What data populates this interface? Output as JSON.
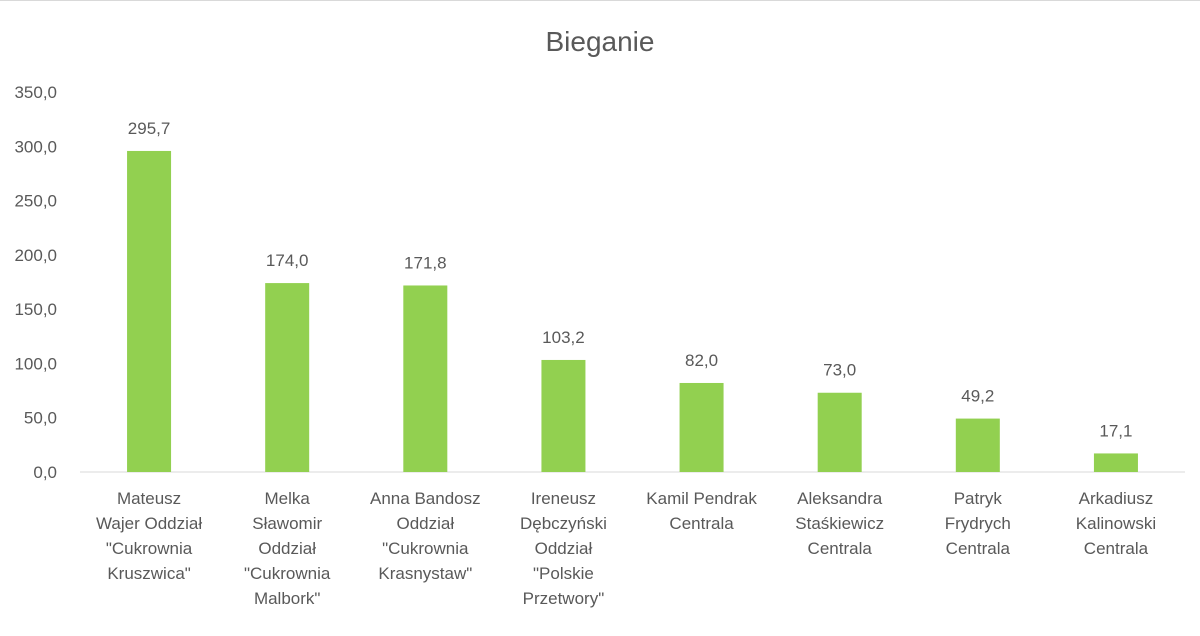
{
  "chart_data": {
    "type": "bar",
    "title": "Bieganie",
    "xlabel": "",
    "ylabel": "",
    "ylim": [
      0,
      350
    ],
    "yticks": [
      "0,0",
      "50,0",
      "100,0",
      "150,0",
      "200,0",
      "250,0",
      "300,0",
      "350,0"
    ],
    "ytick_values": [
      0,
      50,
      100,
      150,
      200,
      250,
      300,
      350
    ],
    "grid": false,
    "legend": "none",
    "bar_color": "#92d050",
    "categories": [
      [
        "Mateusz",
        "Wajer Oddział",
        "\"Cukrownia",
        "Kruszwica\""
      ],
      [
        "Melka",
        "Sławomir",
        "Oddział",
        "\"Cukrownia",
        "Malbork\""
      ],
      [
        "Anna Bandosz",
        "Oddział",
        "\"Cukrownia",
        "Krasnystaw\""
      ],
      [
        "Ireneusz",
        "Dębczyński",
        "Oddział",
        "\"Polskie",
        "Przetwory\""
      ],
      [
        "Kamil Pendrak",
        "Centrala"
      ],
      [
        "Aleksandra",
        "Staśkiewicz",
        "Centrala"
      ],
      [
        "Patryk",
        "Frydrych",
        "Centrala"
      ],
      [
        "Arkadiusz",
        "Kalinowski",
        "Centrala"
      ]
    ],
    "values": [
      295.7,
      174.0,
      171.8,
      103.2,
      82.0,
      73.0,
      49.2,
      17.1
    ],
    "data_labels": [
      "295,7",
      "174,0",
      "171,8",
      "103,2",
      "82,0",
      "73,0",
      "49,2",
      "17,1"
    ]
  }
}
